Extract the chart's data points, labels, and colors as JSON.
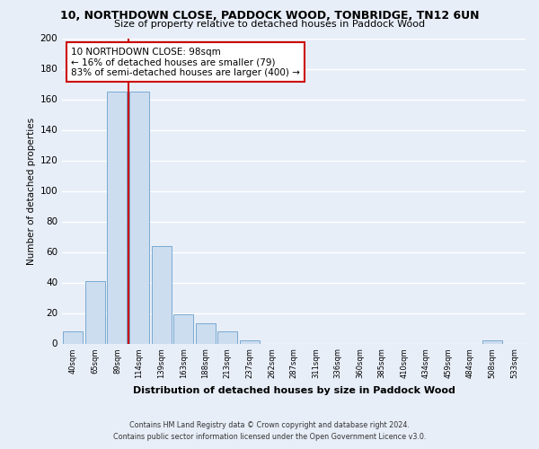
{
  "title": "10, NORTHDOWN CLOSE, PADDOCK WOOD, TONBRIDGE, TN12 6UN",
  "subtitle": "Size of property relative to detached houses in Paddock Wood",
  "xlabel": "Distribution of detached houses by size in Paddock Wood",
  "ylabel": "Number of detached properties",
  "bar_labels": [
    "40sqm",
    "65sqm",
    "89sqm",
    "114sqm",
    "139sqm",
    "163sqm",
    "188sqm",
    "213sqm",
    "237sqm",
    "262sqm",
    "287sqm",
    "311sqm",
    "336sqm",
    "360sqm",
    "385sqm",
    "410sqm",
    "434sqm",
    "459sqm",
    "484sqm",
    "508sqm",
    "533sqm"
  ],
  "bar_values": [
    8,
    41,
    165,
    165,
    64,
    19,
    13,
    8,
    2,
    0,
    0,
    0,
    0,
    0,
    0,
    0,
    0,
    0,
    0,
    2,
    0
  ],
  "bar_color": "#ccddf0",
  "bar_edge_color": "#7aaad0",
  "property_line_x": 2,
  "ylim": [
    0,
    200
  ],
  "yticks": [
    0,
    20,
    40,
    60,
    80,
    100,
    120,
    140,
    160,
    180,
    200
  ],
  "annotation_line1": "10 NORTHDOWN CLOSE: 98sqm",
  "annotation_line2": "← 16% of detached houses are smaller (79)",
  "annotation_line3": "83% of semi-detached houses are larger (400) →",
  "annotation_box_color": "#ffffff",
  "annotation_box_edge": "#cc0000",
  "red_line_color": "#cc0000",
  "footer_line1": "Contains HM Land Registry data © Crown copyright and database right 2024.",
  "footer_line2": "Contains public sector information licensed under the Open Government Licence v3.0.",
  "bg_color": "#e8eef8",
  "plot_bg_color": "#e8eef8",
  "grid_color": "#ffffff",
  "title_fontsize": 9,
  "subtitle_fontsize": 8
}
